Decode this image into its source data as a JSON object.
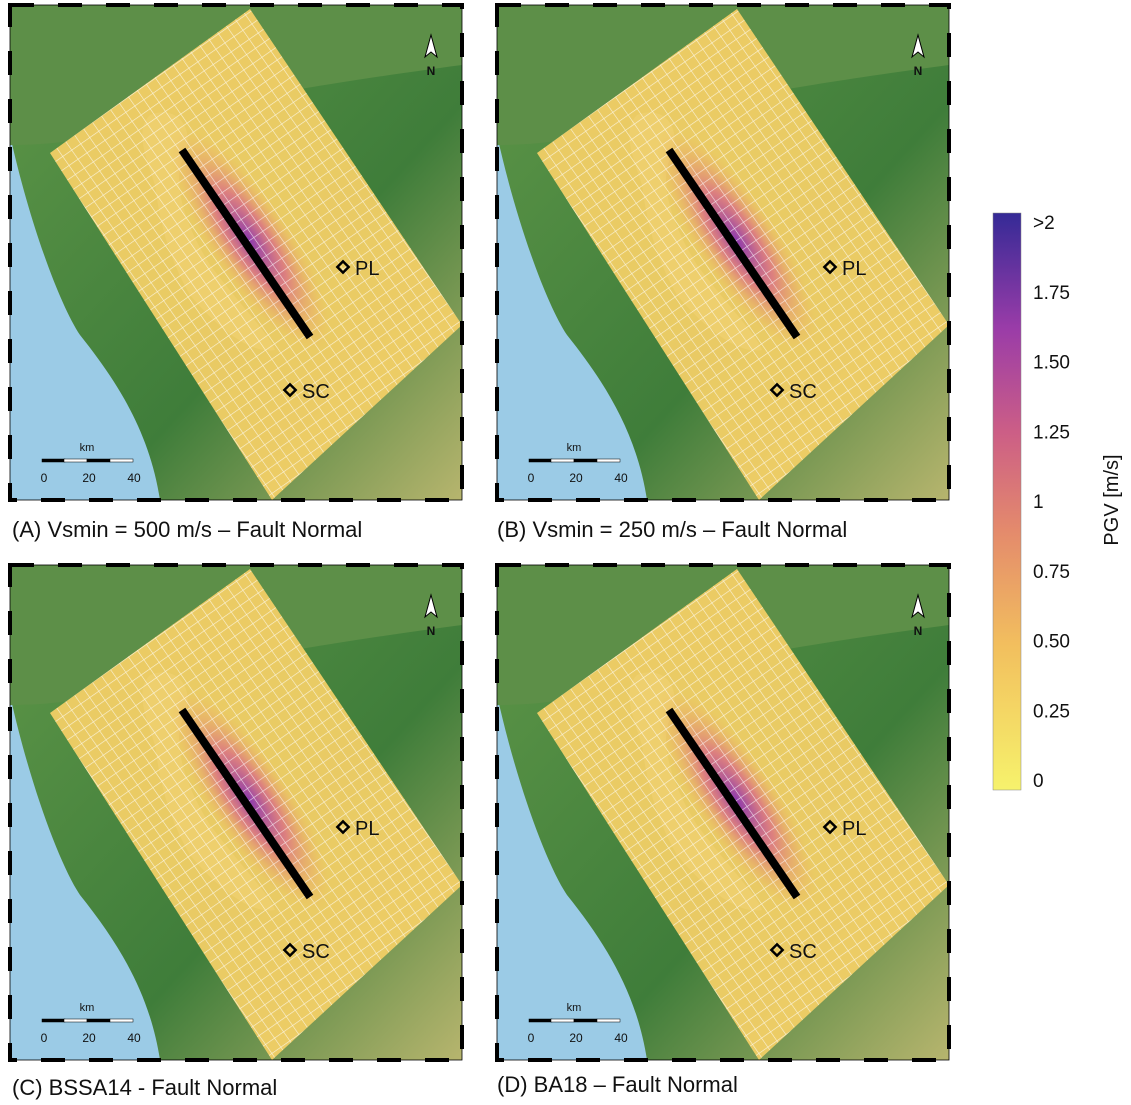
{
  "panels": [
    {
      "caption": "(A) Vsmin = 500 m/s – Fault Normal",
      "north": "N",
      "sites": [
        "PL",
        "SC"
      ],
      "scale": {
        "unit": "km",
        "ticks": [
          "0",
          "20",
          "40"
        ]
      }
    },
    {
      "caption": "(B) Vsmin = 250 m/s – Fault Normal",
      "north": "N",
      "sites": [
        "PL",
        "SC"
      ],
      "scale": {
        "unit": "km",
        "ticks": [
          "0",
          "20",
          "40"
        ]
      }
    },
    {
      "caption": "(C) BSSA14 - Fault Normal",
      "north": "N",
      "sites": [
        "PL",
        "SC"
      ],
      "scale": {
        "unit": "km",
        "ticks": [
          "0",
          "20",
          "40"
        ]
      }
    },
    {
      "caption": "(D) BA18 – Fault Normal",
      "north": "N",
      "sites": [
        "PL",
        "SC"
      ],
      "scale": {
        "unit": "km",
        "ticks": [
          "0",
          "20",
          "40"
        ]
      }
    }
  ],
  "colorbar": {
    "label": "PGV [m/s]",
    "ticks": [
      ">2",
      "1.75",
      "1.50",
      "1.25",
      "1",
      "0.75",
      "0.50",
      "0.25",
      "0"
    ]
  }
}
